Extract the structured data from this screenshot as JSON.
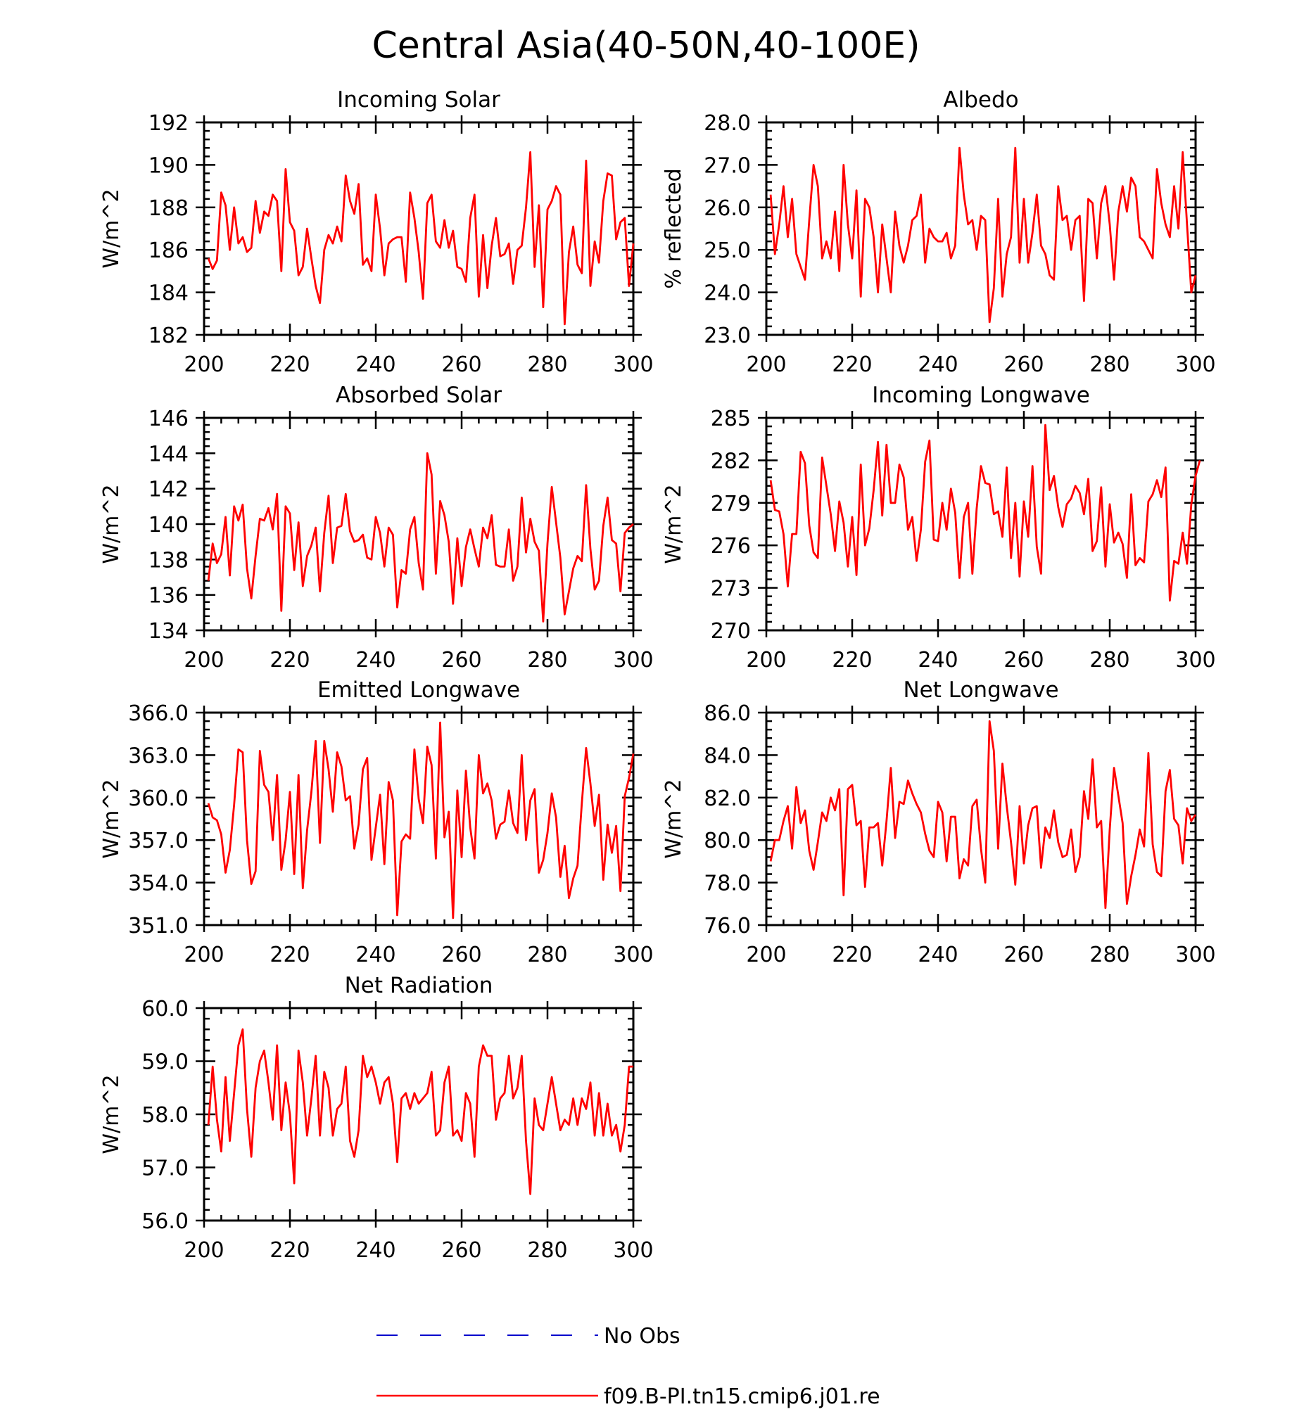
{
  "title": "Central Asia(40-50N,40-100E)",
  "colors": {
    "model": "#ff0000",
    "obs": "#0000cc",
    "axes": "#000000"
  },
  "legend": [
    {
      "label": "No Obs",
      "style": "dashed",
      "color": "#0000cc"
    },
    {
      "label": "f09.B-PI.tn15.cmip6.j01.re",
      "style": "solid",
      "color": "#ff0000"
    }
  ],
  "chart_data": [
    {
      "type": "line",
      "title": "Incoming Solar",
      "ylabel": "W/m^2",
      "xlim": [
        200,
        300
      ],
      "ylim": [
        182,
        192
      ],
      "xticks": [
        "200",
        "220",
        "240",
        "260",
        "280",
        "300"
      ],
      "yticks": [
        "182",
        "184",
        "186",
        "188",
        "190",
        "192"
      ],
      "x_start": 201,
      "series": [
        {
          "values": [
            185.6,
            185.1,
            185.5,
            188.7,
            188.1,
            186.0,
            188.0,
            186.3,
            186.6,
            185.9,
            186.1,
            188.3,
            186.8,
            187.8,
            187.6,
            188.6,
            188.3,
            185.0,
            189.8,
            187.3,
            186.9,
            184.8,
            185.2,
            187.0,
            185.6,
            184.3,
            183.5,
            186.0,
            186.7,
            186.3,
            187.1,
            186.4,
            189.5,
            188.3,
            187.7,
            189.1,
            185.3,
            185.6,
            185.0,
            188.6,
            187.0,
            184.8,
            186.3,
            186.5,
            186.6,
            186.6,
            184.5,
            188.7,
            187.5,
            185.9,
            183.7,
            188.2,
            188.6,
            186.4,
            186.1,
            187.4,
            186.1,
            186.9,
            185.2,
            185.1,
            184.5,
            187.5,
            188.6,
            183.8,
            186.7,
            184.2,
            186.2,
            187.5,
            185.7,
            185.8,
            186.3,
            184.4,
            186.0,
            186.2,
            188.0,
            190.6,
            185.2,
            188.1,
            183.3,
            187.9,
            188.3,
            189.0,
            188.6,
            182.5,
            185.9,
            187.1,
            185.3,
            184.9,
            190.2,
            184.3,
            186.4,
            185.4,
            188.3,
            189.6,
            189.5,
            186.5,
            187.3,
            187.5,
            184.3,
            186.3
          ]
        }
      ]
    },
    {
      "type": "line",
      "title": "Albedo",
      "ylabel": "% reflected",
      "xlim": [
        200,
        300
      ],
      "ylim": [
        23.0,
        28.0
      ],
      "xticks": [
        "200",
        "220",
        "240",
        "260",
        "280",
        "300"
      ],
      "yticks": [
        "23.0",
        "24.0",
        "25.0",
        "26.0",
        "27.0",
        "28.0"
      ],
      "x_start": 201,
      "series": [
        {
          "values": [
            26.3,
            24.9,
            25.6,
            26.5,
            25.3,
            26.2,
            24.9,
            24.6,
            24.3,
            25.7,
            27.0,
            26.5,
            24.8,
            25.2,
            24.8,
            25.9,
            24.5,
            27.0,
            25.6,
            24.8,
            26.4,
            23.9,
            26.2,
            26.0,
            25.3,
            24.0,
            25.6,
            24.8,
            24.0,
            25.9,
            25.1,
            24.7,
            25.1,
            25.7,
            25.8,
            26.3,
            24.7,
            25.5,
            25.3,
            25.2,
            25.2,
            25.4,
            24.8,
            25.1,
            27.4,
            26.3,
            25.6,
            25.7,
            25.0,
            25.8,
            25.7,
            23.3,
            24.1,
            26.2,
            23.9,
            24.9,
            25.3,
            27.4,
            24.7,
            26.2,
            24.7,
            25.4,
            26.3,
            25.1,
            24.9,
            24.4,
            24.3,
            26.5,
            25.7,
            25.8,
            25.0,
            25.7,
            25.8,
            23.8,
            26.2,
            26.1,
            24.8,
            26.1,
            26.5,
            25.6,
            24.3,
            25.9,
            26.5,
            25.9,
            26.7,
            26.5,
            25.3,
            25.2,
            25.0,
            24.8,
            26.9,
            26.1,
            25.6,
            25.3,
            26.5,
            25.5,
            27.3,
            25.6,
            24.0,
            24.4
          ]
        }
      ]
    },
    {
      "type": "line",
      "title": "Absorbed Solar",
      "ylabel": "W/m^2",
      "xlim": [
        200,
        300
      ],
      "ylim": [
        134,
        146
      ],
      "xticks": [
        "200",
        "220",
        "240",
        "260",
        "280",
        "300"
      ],
      "yticks": [
        "134",
        "136",
        "138",
        "140",
        "142",
        "144",
        "146"
      ],
      "x_start": 201,
      "series": [
        {
          "values": [
            136.8,
            138.9,
            137.8,
            138.3,
            140.4,
            137.1,
            141.0,
            140.2,
            141.1,
            137.5,
            135.8,
            138.2,
            140.3,
            140.2,
            140.9,
            139.7,
            141.7,
            135.1,
            141.0,
            140.6,
            137.4,
            140.1,
            136.5,
            138.2,
            138.8,
            139.8,
            136.2,
            139.5,
            141.6,
            137.8,
            139.8,
            139.9,
            141.7,
            139.6,
            139.0,
            139.1,
            139.4,
            138.1,
            138.0,
            140.4,
            139.5,
            137.6,
            139.8,
            139.4,
            135.3,
            137.4,
            137.2,
            139.7,
            140.4,
            137.8,
            136.3,
            144.0,
            142.8,
            137.2,
            141.3,
            140.5,
            139.0,
            135.5,
            139.2,
            136.5,
            138.7,
            139.7,
            138.6,
            137.6,
            139.8,
            139.2,
            140.5,
            137.7,
            137.6,
            137.6,
            139.7,
            136.8,
            137.6,
            141.5,
            138.4,
            140.3,
            139.0,
            138.5,
            134.5,
            138.9,
            142.1,
            140.1,
            138.1,
            134.9,
            136.2,
            137.5,
            138.2,
            137.9,
            142.2,
            138.6,
            136.3,
            136.8,
            139.9,
            141.5,
            139.1,
            138.9,
            136.2,
            139.5,
            139.8,
            140.0
          ]
        }
      ]
    },
    {
      "type": "line",
      "title": "Incoming Longwave",
      "ylabel": "W/m^2",
      "xlim": [
        200,
        300
      ],
      "ylim": [
        270,
        285
      ],
      "xticks": [
        "200",
        "220",
        "240",
        "260",
        "280",
        "300"
      ],
      "yticks": [
        "270",
        "273",
        "276",
        "279",
        "282",
        "285"
      ],
      "x_start": 201,
      "series": [
        {
          "values": [
            280.6,
            278.5,
            278.4,
            276.8,
            273.1,
            276.8,
            276.8,
            282.6,
            281.8,
            277.4,
            275.5,
            275.1,
            282.2,
            280.2,
            278.2,
            275.6,
            279.1,
            277.6,
            274.5,
            278.0,
            273.9,
            281.7,
            276.0,
            277.2,
            279.9,
            283.3,
            278.1,
            283.1,
            279.0,
            279.0,
            281.7,
            280.8,
            277.1,
            278.0,
            274.9,
            277.1,
            281.9,
            283.4,
            276.4,
            276.3,
            279.0,
            277.1,
            280.0,
            278.3,
            273.7,
            278.0,
            279.0,
            274.0,
            278.6,
            281.6,
            280.4,
            280.3,
            278.2,
            278.4,
            276.6,
            281.5,
            275.1,
            279.0,
            273.8,
            279.1,
            276.6,
            281.6,
            275.9,
            274.0,
            284.5,
            279.9,
            280.9,
            278.7,
            277.3,
            278.9,
            279.3,
            280.2,
            279.7,
            278.2,
            280.7,
            275.6,
            276.3,
            280.1,
            274.5,
            278.9,
            276.2,
            276.9,
            276.1,
            273.7,
            279.6,
            274.6,
            275.1,
            274.8,
            279.1,
            279.6,
            280.6,
            279.4,
            281.5,
            272.1,
            274.9,
            274.7,
            276.9,
            274.7,
            278.9,
            280.9,
            282.0
          ]
        }
      ]
    },
    {
      "type": "line",
      "title": "Emitted Longwave",
      "ylabel": "W/m^2",
      "xlim": [
        200,
        300
      ],
      "ylim": [
        351.0,
        366.0
      ],
      "xticks": [
        "200",
        "220",
        "240",
        "260",
        "280",
        "300"
      ],
      "yticks": [
        "351.0",
        "354.0",
        "357.0",
        "360.0",
        "363.0",
        "366.0"
      ],
      "x_start": 201,
      "series": [
        {
          "values": [
            359.6,
            358.6,
            358.4,
            357.4,
            354.7,
            356.3,
            359.5,
            363.4,
            363.2,
            357.0,
            353.9,
            354.8,
            363.3,
            360.9,
            360.4,
            357.0,
            361.6,
            354.9,
            357.0,
            360.4,
            354.6,
            361.6,
            353.6,
            357.7,
            360.4,
            364.0,
            356.8,
            364.0,
            362.0,
            359.0,
            363.2,
            362.2,
            359.8,
            360.1,
            356.4,
            358.1,
            362.0,
            362.8,
            355.6,
            357.9,
            360.2,
            355.3,
            361.1,
            359.8,
            351.7,
            356.9,
            357.4,
            357.1,
            363.4,
            359.9,
            358.2,
            363.6,
            362.3,
            355.7,
            365.3,
            357.2,
            359.0,
            351.5,
            360.5,
            355.8,
            361.9,
            357.9,
            355.7,
            363.0,
            360.3,
            361.0,
            359.8,
            357.1,
            358.1,
            358.3,
            360.5,
            358.2,
            357.5,
            363.0,
            357.0,
            359.8,
            360.6,
            354.7,
            355.6,
            357.5,
            360.3,
            358.6,
            354.4,
            356.6,
            352.9,
            354.3,
            355.2,
            359.6,
            363.5,
            361.0,
            358.0,
            360.2,
            354.2,
            358.1,
            356.1,
            358.0,
            353.4,
            360.1,
            361.4,
            363.1
          ]
        }
      ]
    },
    {
      "type": "line",
      "title": "Net Longwave",
      "ylabel": "W/m^2",
      "xlim": [
        200,
        300
      ],
      "ylim": [
        76.0,
        86.0
      ],
      "xticks": [
        "200",
        "220",
        "240",
        "260",
        "280",
        "300"
      ],
      "yticks": [
        "76.0",
        "78.0",
        "80.0",
        "82.0",
        "84.0",
        "86.0"
      ],
      "x_start": 201,
      "series": [
        {
          "values": [
            79.0,
            80.0,
            80.0,
            80.9,
            81.6,
            79.6,
            82.5,
            80.8,
            81.4,
            79.5,
            78.6,
            79.9,
            81.3,
            80.9,
            82.0,
            81.4,
            82.4,
            77.4,
            82.4,
            82.6,
            80.7,
            80.9,
            77.8,
            80.6,
            80.6,
            80.8,
            78.8,
            80.9,
            83.4,
            80.1,
            81.8,
            81.7,
            82.8,
            82.2,
            81.7,
            81.3,
            80.3,
            79.5,
            79.2,
            81.8,
            81.3,
            79.0,
            81.1,
            81.1,
            78.2,
            79.1,
            78.8,
            81.6,
            81.9,
            79.6,
            78.0,
            85.6,
            84.2,
            79.6,
            83.6,
            81.6,
            79.9,
            77.9,
            81.6,
            78.9,
            80.7,
            81.5,
            81.6,
            78.7,
            80.6,
            80.1,
            81.4,
            79.9,
            79.2,
            79.3,
            80.5,
            78.5,
            79.2,
            82.3,
            81.0,
            83.8,
            80.6,
            80.9,
            76.8,
            80.5,
            83.4,
            82.1,
            80.8,
            77.0,
            78.3,
            79.3,
            80.5,
            79.7,
            84.1,
            79.8,
            78.5,
            78.3,
            82.3,
            83.3,
            81.0,
            80.7,
            78.9,
            81.5,
            80.9,
            81.2
          ]
        }
      ]
    },
    {
      "type": "line",
      "title": "Net Radiation",
      "ylabel": "W/m^2",
      "xlim": [
        200,
        300
      ],
      "ylim": [
        56.0,
        60.0
      ],
      "xticks": [
        "200",
        "220",
        "240",
        "260",
        "280",
        "300"
      ],
      "yticks": [
        "56.0",
        "57.0",
        "58.0",
        "59.0",
        "60.0"
      ],
      "x_start": 201,
      "series": [
        {
          "values": [
            57.8,
            58.9,
            57.9,
            57.3,
            58.7,
            57.5,
            58.4,
            59.3,
            59.6,
            58.1,
            57.2,
            58.5,
            59.0,
            59.2,
            58.6,
            57.9,
            59.3,
            57.7,
            58.6,
            58.0,
            56.7,
            59.2,
            58.6,
            57.6,
            58.3,
            59.1,
            57.6,
            58.8,
            58.5,
            57.6,
            58.1,
            58.2,
            58.9,
            57.5,
            57.2,
            57.7,
            59.1,
            58.7,
            58.9,
            58.6,
            58.2,
            58.6,
            58.7,
            58.2,
            57.1,
            58.3,
            58.4,
            58.1,
            58.4,
            58.2,
            58.3,
            58.4,
            58.8,
            57.6,
            57.7,
            58.6,
            58.9,
            57.6,
            57.7,
            57.5,
            58.4,
            58.2,
            57.2,
            58.9,
            59.3,
            59.1,
            59.1,
            57.9,
            58.3,
            58.4,
            59.1,
            58.3,
            58.5,
            59.1,
            57.5,
            56.5,
            58.3,
            57.8,
            57.7,
            58.2,
            58.7,
            58.2,
            57.7,
            57.9,
            57.8,
            58.3,
            57.8,
            58.3,
            58.1,
            58.6,
            57.6,
            58.4,
            57.6,
            58.2,
            57.6,
            57.8,
            57.3,
            57.8,
            58.9,
            58.9
          ]
        }
      ]
    }
  ]
}
